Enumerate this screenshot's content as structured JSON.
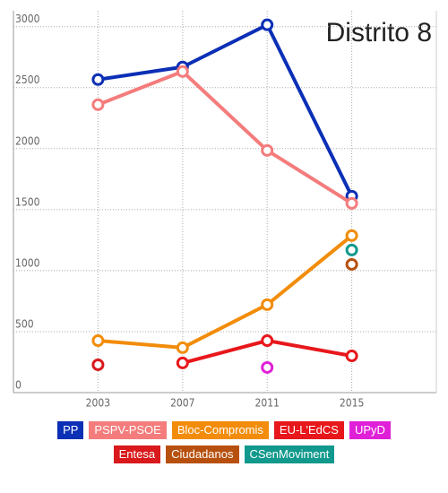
{
  "chart_data": {
    "type": "line",
    "title": "Distrito 8",
    "x": [
      2003,
      2007,
      2011,
      2015
    ],
    "xlim": [
      1999,
      2019
    ],
    "xticks": [
      2003,
      2007,
      2011,
      2015
    ],
    "ylim": [
      0,
      3130
    ],
    "yticks": [
      0,
      500,
      1000,
      1500,
      2000,
      2500,
      3000
    ],
    "grid": true,
    "legend": "bottom",
    "series": [
      {
        "name": "PP",
        "color": "#0b2fb5",
        "values": [
          2566,
          2669,
          3015,
          1610
        ]
      },
      {
        "name": "PSPV-PSOE",
        "color": "#f47c7c",
        "values": [
          2360,
          2632,
          1985,
          1551
        ]
      },
      {
        "name": "Bloc-Compromis",
        "color": "#f28c0a",
        "values": [
          426,
          368,
          721,
          1287
        ]
      },
      {
        "name": "EU-L'EdCS",
        "color": "#e8171b",
        "values": [
          null,
          243,
          426,
          301
        ]
      },
      {
        "name": "UPyD",
        "color": "#e020d8",
        "values": [
          null,
          null,
          206,
          null
        ]
      },
      {
        "name": "Entesa",
        "color": "#d9191c",
        "values": [
          228,
          null,
          null,
          null
        ]
      },
      {
        "name": "Ciudadanos",
        "color": "#b7500e",
        "values": [
          null,
          null,
          null,
          1051
        ]
      },
      {
        "name": "CSenMoviment",
        "color": "#10998c",
        "values": [
          null,
          null,
          null,
          1169
        ]
      }
    ]
  }
}
